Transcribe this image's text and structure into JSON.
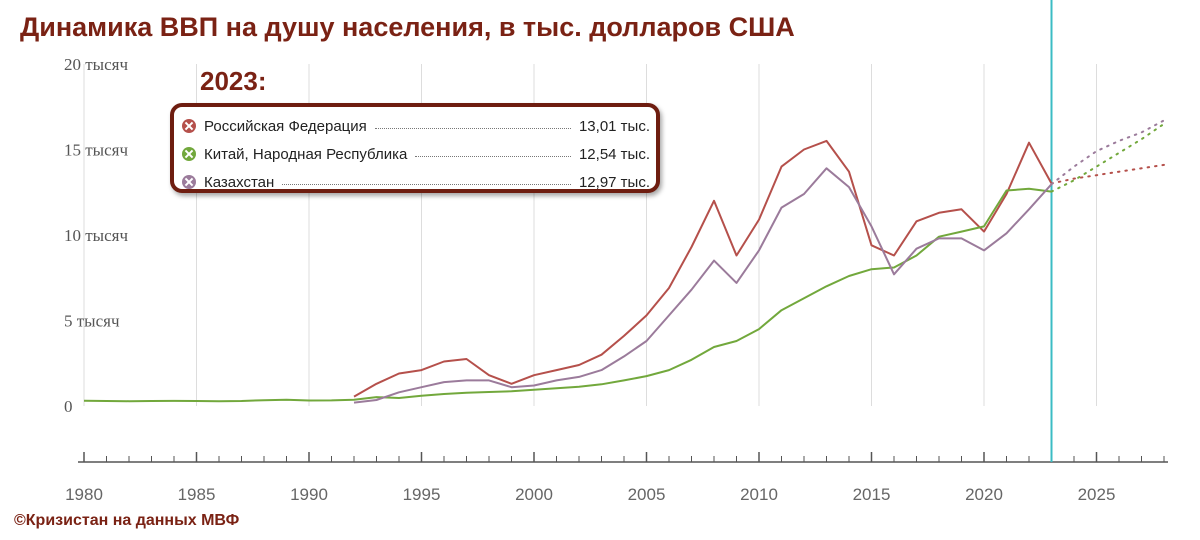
{
  "title": "Динамика ВВП на душу населения, в тыс. долларов США",
  "credit": "©Кризистан на данных МВФ",
  "legend": {
    "year": "2023:",
    "items": [
      {
        "name": "Российская Федерация",
        "value": "13,01 тыс.",
        "color": "#b5504b"
      },
      {
        "name": "Китай, Народная Республика",
        "value": "12,54 тыс.",
        "color": "#72a83c"
      },
      {
        "name": "Казахстан",
        "value": "12,97 тыс.",
        "color": "#9b7b9b"
      }
    ]
  },
  "chart_data": {
    "type": "line",
    "ylim": [
      0,
      20
    ],
    "xlim": [
      1980,
      2028
    ],
    "yticks": [
      {
        "value": 0,
        "label": "0"
      },
      {
        "value": 5,
        "label": "5 тысяч"
      },
      {
        "value": 10,
        "label": "10 тысяч"
      },
      {
        "value": 15,
        "label": "15 тысяч"
      },
      {
        "value": 20,
        "label": "20 тысяч"
      }
    ],
    "xticks": [
      1980,
      1985,
      1990,
      1995,
      2000,
      2005,
      2010,
      2015,
      2020,
      2025
    ],
    "forecast_start": 2023,
    "grid": "vertical",
    "colors": {
      "grid": "#dddddd",
      "forecast_line": "#3bbcc4",
      "axis": "#555555"
    },
    "series": [
      {
        "name": "Российская Федерация",
        "color": "#b5504b",
        "x": [
          1992,
          1993,
          1994,
          1995,
          1996,
          1997,
          1998,
          1999,
          2000,
          2001,
          2002,
          2003,
          2004,
          2005,
          2006,
          2007,
          2008,
          2009,
          2010,
          2011,
          2012,
          2013,
          2014,
          2015,
          2016,
          2017,
          2018,
          2019,
          2020,
          2021,
          2022,
          2023
        ],
        "y": [
          0.55,
          1.3,
          1.9,
          2.1,
          2.6,
          2.75,
          1.8,
          1.3,
          1.8,
          2.1,
          2.4,
          3.0,
          4.1,
          5.3,
          6.9,
          9.3,
          12.0,
          8.8,
          10.9,
          14.0,
          15.0,
          15.5,
          13.7,
          9.4,
          8.8,
          10.8,
          11.3,
          11.5,
          10.2,
          12.4,
          15.4,
          13.01
        ],
        "forecast_x": [
          2023,
          2024,
          2025,
          2026,
          2027,
          2028
        ],
        "forecast_y": [
          13.01,
          13.3,
          13.5,
          13.7,
          13.9,
          14.1
        ]
      },
      {
        "name": "Китай, Народная Республика",
        "color": "#72a83c",
        "x": [
          1980,
          1981,
          1982,
          1983,
          1984,
          1985,
          1986,
          1987,
          1988,
          1989,
          1990,
          1991,
          1992,
          1993,
          1994,
          1995,
          1996,
          1997,
          1998,
          1999,
          2000,
          2001,
          2002,
          2003,
          2004,
          2005,
          2006,
          2007,
          2008,
          2009,
          2010,
          2011,
          2012,
          2013,
          2014,
          2015,
          2016,
          2017,
          2018,
          2019,
          2020,
          2021,
          2022,
          2023
        ],
        "y": [
          0.31,
          0.29,
          0.28,
          0.29,
          0.3,
          0.29,
          0.28,
          0.29,
          0.34,
          0.36,
          0.32,
          0.33,
          0.37,
          0.52,
          0.47,
          0.6,
          0.7,
          0.77,
          0.82,
          0.86,
          0.95,
          1.04,
          1.13,
          1.27,
          1.5,
          1.75,
          2.1,
          2.7,
          3.45,
          3.8,
          4.5,
          5.6,
          6.3,
          7.0,
          7.6,
          8.0,
          8.1,
          8.8,
          9.9,
          10.2,
          10.5,
          12.6,
          12.7,
          12.54
        ],
        "forecast_x": [
          2023,
          2024,
          2025,
          2026,
          2027,
          2028
        ],
        "forecast_y": [
          12.54,
          13.2,
          14.0,
          14.8,
          15.6,
          16.5
        ]
      },
      {
        "name": "Казахстан",
        "color": "#9b7b9b",
        "x": [
          1992,
          1993,
          1994,
          1995,
          1996,
          1997,
          1998,
          1999,
          2000,
          2001,
          2002,
          2003,
          2004,
          2005,
          2006,
          2007,
          2008,
          2009,
          2010,
          2011,
          2012,
          2013,
          2014,
          2015,
          2016,
          2017,
          2018,
          2019,
          2020,
          2021,
          2022,
          2023
        ],
        "y": [
          0.2,
          0.35,
          0.8,
          1.1,
          1.4,
          1.5,
          1.5,
          1.1,
          1.2,
          1.5,
          1.7,
          2.1,
          2.9,
          3.8,
          5.3,
          6.8,
          8.5,
          7.2,
          9.1,
          11.6,
          12.4,
          13.9,
          12.8,
          10.5,
          7.7,
          9.2,
          9.8,
          9.8,
          9.1,
          10.1,
          11.5,
          12.97
        ],
        "forecast_x": [
          2023,
          2024,
          2025,
          2026,
          2027,
          2028
        ],
        "forecast_y": [
          12.97,
          14.0,
          14.9,
          15.5,
          16.0,
          16.7
        ]
      }
    ]
  }
}
